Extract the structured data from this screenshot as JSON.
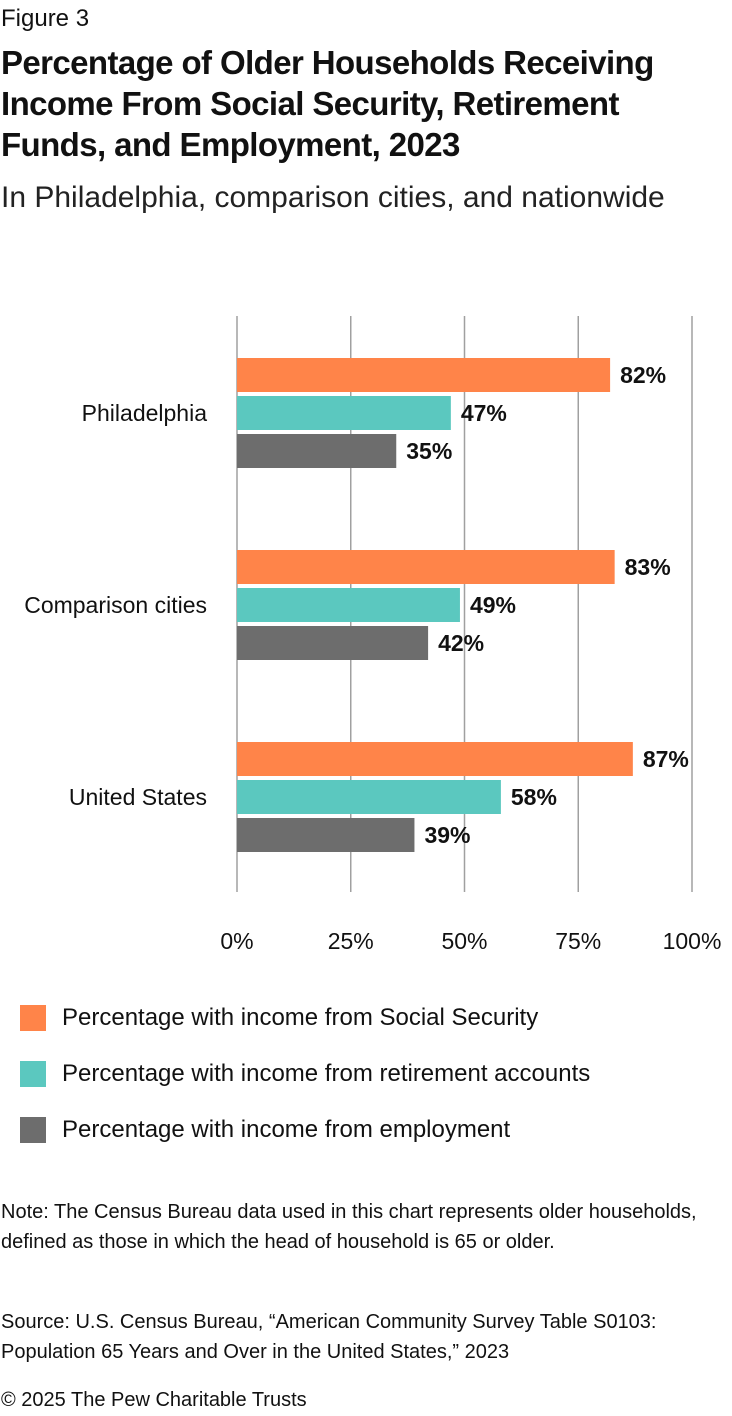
{
  "figure_label": "Figure 3",
  "title": "Percentage of Older Households Receiving Income From Social Security, Retirement Funds, and Employment, 2023",
  "subtitle": "In Philadelphia, comparison cities, and nationwide",
  "colors": {
    "social_security": "#ff8449",
    "retirement": "#5bc8bf",
    "employment": "#6d6d6d",
    "grid": "#a0a0a0"
  },
  "chart_data": {
    "type": "bar",
    "orientation": "horizontal",
    "categories": [
      "Philadelphia",
      "Comparison cities",
      "United States"
    ],
    "series": [
      {
        "name": "Percentage with income from Social Security",
        "values": [
          82,
          83,
          87
        ],
        "labels": [
          "82%",
          "83%",
          "87%"
        ],
        "color": "#ff8449"
      },
      {
        "name": "Percentage with income from retirement accounts",
        "values": [
          47,
          49,
          58
        ],
        "labels": [
          "47%",
          "49%",
          "58%"
        ],
        "color": "#5bc8bf"
      },
      {
        "name": "Percentage with income from employment",
        "values": [
          35,
          42,
          39
        ],
        "labels": [
          "35%",
          "42%",
          "39%"
        ],
        "color": "#6d6d6d"
      }
    ],
    "xlim": [
      0,
      100
    ],
    "xticks": [
      0,
      25,
      50,
      75,
      100
    ],
    "xtick_labels": [
      "0%",
      "25%",
      "50%",
      "75%",
      "100%"
    ],
    "grid": true,
    "legend_position": "bottom"
  },
  "legend": [
    {
      "label": "Percentage with income from Social Security",
      "color": "#ff8449"
    },
    {
      "label": "Percentage with income from retirement accounts",
      "color": "#5bc8bf"
    },
    {
      "label": "Percentage with income from employment",
      "color": "#6d6d6d"
    }
  ],
  "note": "Note: The Census Bureau data used in this chart represents older households, defined as those in which the head of household is 65 or older.",
  "source": "Source: U.S. Census Bureau, “American Community Survey Table S0103: Population 65 Years and Over in the United States,” 2023",
  "copyright": "© 2025 The Pew Charitable Trusts"
}
